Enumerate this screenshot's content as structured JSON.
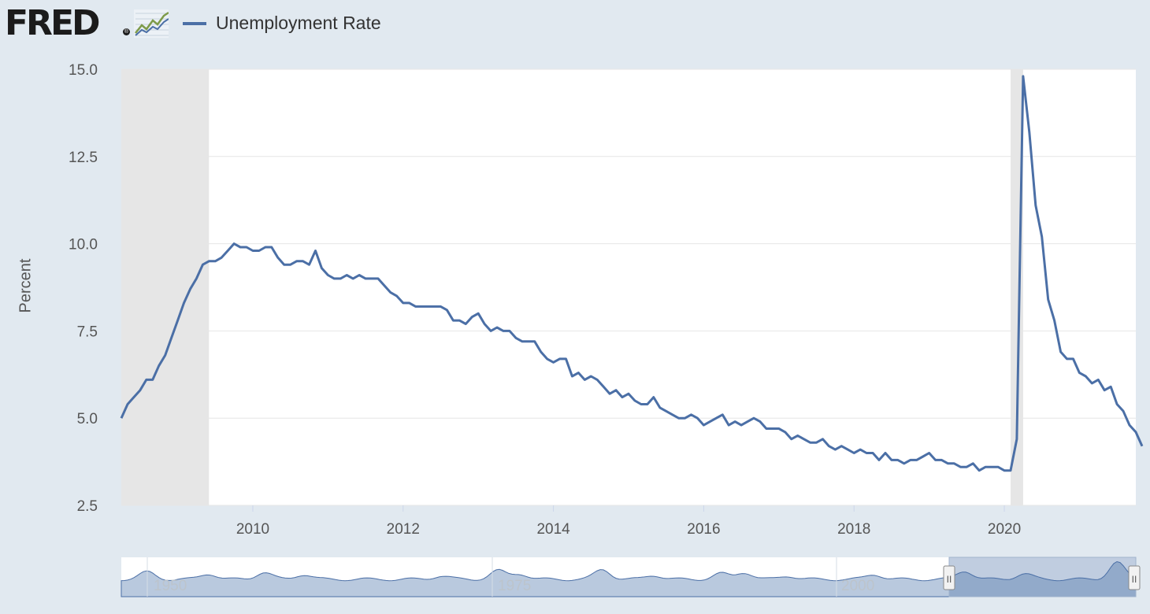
{
  "header": {
    "logo_text": "FRED",
    "logo_mark": "®",
    "logo_icon": "line-chart-icon"
  },
  "legend": {
    "label": "Unemployment Rate",
    "color": "#4b6fa6"
  },
  "chart_data": {
    "type": "line",
    "ylabel": "Percent",
    "xlabel": "",
    "title": "",
    "ylim": [
      2.5,
      15.0
    ],
    "xlim": [
      "2008-04",
      "2021-10"
    ],
    "yticks": [
      "2.5",
      "5.0",
      "7.5",
      "10.0",
      "12.5",
      "15.0"
    ],
    "xticks": [
      "2010",
      "2012",
      "2014",
      "2016",
      "2018",
      "2020"
    ],
    "grid": true,
    "legend_position": "top-left",
    "recessions": [
      {
        "start": "2008-04",
        "end": "2009-06"
      },
      {
        "start": "2020-02",
        "end": "2020-04"
      }
    ],
    "series": [
      {
        "name": "Unemployment Rate",
        "color": "#4b6fa6",
        "start": "2008-04",
        "frequency": "monthly",
        "values": [
          5.0,
          5.4,
          5.6,
          5.8,
          6.1,
          6.1,
          6.5,
          6.8,
          7.3,
          7.8,
          8.3,
          8.7,
          9.0,
          9.4,
          9.5,
          9.5,
          9.6,
          9.8,
          10.0,
          9.9,
          9.9,
          9.8,
          9.8,
          9.9,
          9.9,
          9.6,
          9.4,
          9.4,
          9.5,
          9.5,
          9.4,
          9.8,
          9.3,
          9.1,
          9.0,
          9.0,
          9.1,
          9.0,
          9.1,
          9.0,
          9.0,
          9.0,
          8.8,
          8.6,
          8.5,
          8.3,
          8.3,
          8.2,
          8.2,
          8.2,
          8.2,
          8.2,
          8.1,
          7.8,
          7.8,
          7.7,
          7.9,
          8.0,
          7.7,
          7.5,
          7.6,
          7.5,
          7.5,
          7.3,
          7.2,
          7.2,
          7.2,
          6.9,
          6.7,
          6.6,
          6.7,
          6.7,
          6.2,
          6.3,
          6.1,
          6.2,
          6.1,
          5.9,
          5.7,
          5.8,
          5.6,
          5.7,
          5.5,
          5.4,
          5.4,
          5.6,
          5.3,
          5.2,
          5.1,
          5.0,
          5.0,
          5.1,
          5.0,
          4.8,
          4.9,
          5.0,
          5.1,
          4.8,
          4.9,
          4.8,
          4.9,
          5.0,
          4.9,
          4.7,
          4.7,
          4.7,
          4.6,
          4.4,
          4.5,
          4.4,
          4.3,
          4.3,
          4.4,
          4.2,
          4.1,
          4.2,
          4.1,
          4.0,
          4.1,
          4.0,
          4.0,
          3.8,
          4.0,
          3.8,
          3.8,
          3.7,
          3.8,
          3.8,
          3.9,
          4.0,
          3.8,
          3.8,
          3.7,
          3.7,
          3.6,
          3.6,
          3.7,
          3.5,
          3.6,
          3.6,
          3.6,
          3.5,
          3.5,
          4.4,
          14.8,
          13.2,
          11.1,
          10.2,
          8.4,
          7.8,
          6.9,
          6.7,
          6.7,
          6.3,
          6.2,
          6.0,
          6.1,
          5.8,
          5.9,
          5.4,
          5.2,
          4.8,
          4.6,
          4.2
        ]
      }
    ]
  },
  "navigator": {
    "labels": [
      "1950",
      "1975",
      "2000"
    ],
    "handle_left": "II",
    "handle_right": "II"
  }
}
